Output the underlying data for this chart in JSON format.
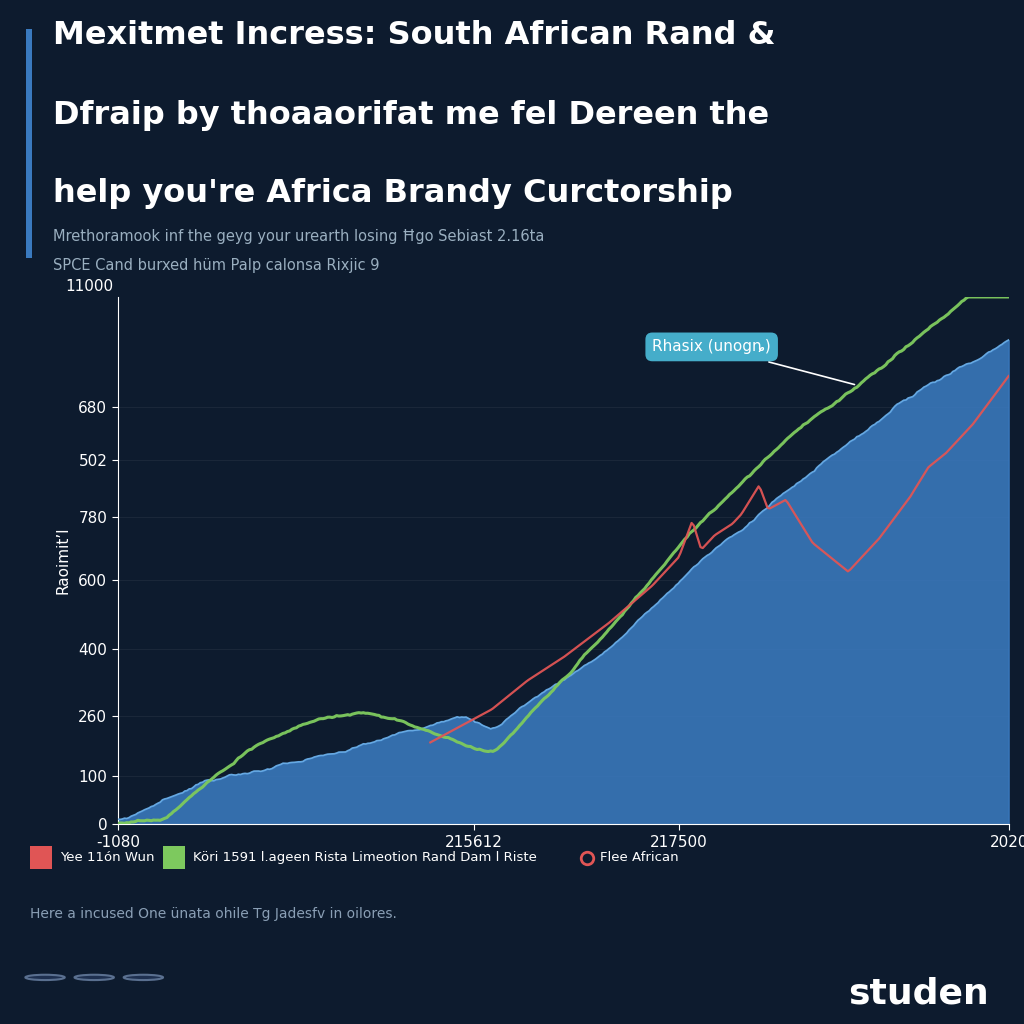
{
  "title_line1": "Mexitmet Incress: South African Rand &",
  "title_line2": "Dfraip by thoaaorifat me fel Dereen the",
  "title_line3": "help you're Africa Brandy Curctorship",
  "subtitle_line1": "Mrethoramook inf the geyg your urearth losing Ħgo Sebiast 2.16ta",
  "subtitle_line2": "SPCE Cand burxed hüm Palp calonsa Rixjic 9",
  "ylabel": "Raoimit’l",
  "xtick_labels": [
    "-1080",
    "215612",
    "217500",
    "2020"
  ],
  "ytick_labels": [
    "0",
    "100",
    "260",
    "400",
    "600",
    "780",
    "502",
    "680",
    "11000"
  ],
  "legend_items": [
    {
      "label": "Yee 11ón Wun",
      "color": "#e05555",
      "marker": "square"
    },
    {
      "label": "Köri 1591 l.ageen Rista Limeotion Rand Dam l Riste",
      "color": "#7dc95e",
      "marker": "square"
    },
    {
      "label": "Flee African",
      "color": "#e05555",
      "marker": "circle"
    }
  ],
  "footnote": "Here a incused One ünata ohile Tg Jadesfv in oilores.",
  "bg_color": "#0d1b2e",
  "accent_color": "#3a7abf",
  "title_color": "#ffffff",
  "subtitle_color": "#9aafc0",
  "annotation_label": "Rhasix (unogȵ)",
  "annotation_bg": "#4bbbd8"
}
